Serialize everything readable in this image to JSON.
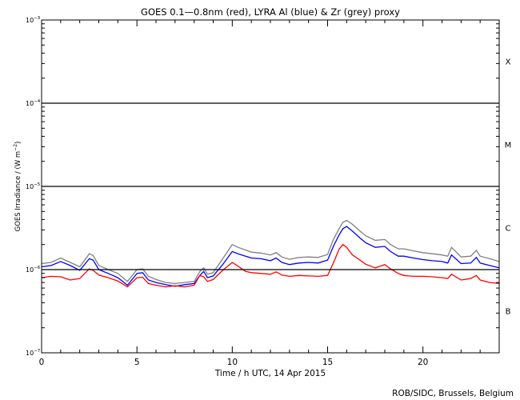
{
  "chart_data": {
    "type": "line",
    "title": "GOES 0.1—0.8nm (red), LYRA Al (blue) & Zr (grey) proxy",
    "xlabel": "Time / h UTC, 14 Apr 2015",
    "ylabel_main": "GOES Irradiance / (W m",
    "ylabel_exp": "−2",
    "ylabel_close": ")",
    "credit": "ROB/SIDC, Brussels, Belgium",
    "x_range": [
      0,
      24
    ],
    "y_range": [
      1e-07,
      0.001
    ],
    "y_scale": "log",
    "x_ticks": [
      "0",
      "5",
      "10",
      "15",
      "20"
    ],
    "x_tick_values": [
      0,
      5,
      10,
      15,
      20
    ],
    "y_ticks": [
      {
        "base": "10",
        "exp": "−3",
        "value": 0.001
      },
      {
        "base": "10",
        "exp": "−4",
        "value": 0.0001
      },
      {
        "base": "10",
        "exp": "−5",
        "value": 1e-05
      },
      {
        "base": "10",
        "exp": "−6",
        "value": 1e-06
      },
      {
        "base": "10",
        "exp": "−7",
        "value": 1e-07
      }
    ],
    "flare_levels": [
      0.0001,
      1e-05,
      1e-06
    ],
    "flare_classes": [
      {
        "label": "X",
        "value": 0.00032
      },
      {
        "label": "M",
        "value": 3.2e-05
      },
      {
        "label": "C",
        "value": 3.2e-06
      },
      {
        "label": "B",
        "value": 3.2e-07
      }
    ],
    "series": [
      {
        "color": "#ff0000",
        "x": [
          0,
          0.5,
          1,
          1.5,
          2,
          2.5,
          2.7,
          3,
          3.5,
          4,
          4.5,
          5,
          5.3,
          5.6,
          6,
          6.5,
          7,
          7.5,
          8,
          8.3,
          8.5,
          8.7,
          9,
          9.5,
          10,
          10.3,
          10.7,
          11,
          11.5,
          12,
          12.3,
          12.6,
          13,
          13.5,
          14,
          14.5,
          15,
          15.3,
          15.6,
          15.8,
          16,
          16.3,
          16.7,
          17,
          17.5,
          18,
          18.3,
          18.7,
          19,
          19.5,
          20,
          20.5,
          21,
          21.3,
          21.5,
          21.8,
          22,
          22.5,
          22.8,
          23,
          23.5,
          24
        ],
        "values": [
          8e-07,
          8.3e-07,
          8.2e-07,
          7.5e-07,
          7.8e-07,
          1.02e-06,
          9.8e-07,
          8.6e-07,
          8e-07,
          7.3e-07,
          6.2e-07,
          8e-07,
          8.1e-07,
          6.8e-07,
          6.5e-07,
          6.2e-07,
          6.4e-07,
          6.2e-07,
          6.5e-07,
          8.5e-07,
          8.2e-07,
          7.2e-07,
          7.6e-07,
          9.8e-07,
          1.22e-06,
          1.1e-06,
          9.5e-07,
          9.2e-07,
          9e-07,
          8.8e-07,
          9.4e-07,
          8.6e-07,
          8.3e-07,
          8.5e-07,
          8.4e-07,
          8.3e-07,
          8.5e-07,
          1.2e-06,
          1.75e-06,
          2e-06,
          1.85e-06,
          1.5e-06,
          1.3e-06,
          1.16e-06,
          1.05e-06,
          1.15e-06,
          1.02e-06,
          9e-07,
          8.5e-07,
          8.3e-07,
          8.3e-07,
          8.2e-07,
          8e-07,
          7.8e-07,
          8.8e-07,
          8e-07,
          7.5e-07,
          7.8e-07,
          8.5e-07,
          7.5e-07,
          7e-07,
          6.8e-07
        ]
      },
      {
        "color": "#0000ff",
        "x": [
          0,
          0.5,
          1,
          1.5,
          2,
          2.5,
          2.7,
          3,
          3.5,
          4,
          4.5,
          5,
          5.3,
          5.6,
          6,
          6.5,
          7,
          7.5,
          8,
          8.3,
          8.5,
          8.7,
          9,
          9.5,
          10,
          10.3,
          10.7,
          11,
          11.5,
          12,
          12.3,
          12.6,
          13,
          13.5,
          14,
          14.5,
          15,
          15.3,
          15.6,
          15.8,
          16,
          16.3,
          16.7,
          17,
          17.5,
          18,
          18.3,
          18.7,
          19,
          19.5,
          20,
          20.5,
          21,
          21.3,
          21.5,
          21.8,
          22,
          22.5,
          22.8,
          23,
          23.5,
          24
        ],
        "values": [
          1.08e-06,
          1.12e-06,
          1.25e-06,
          1.12e-06,
          9.8e-07,
          1.35e-06,
          1.3e-06,
          1e-06,
          9e-07,
          8e-07,
          6.5e-07,
          9e-07,
          9.2e-07,
          7.5e-07,
          7e-07,
          6.6e-07,
          6.3e-07,
          6.6e-07,
          6.8e-07,
          8.5e-07,
          9.5e-07,
          8e-07,
          8.4e-07,
          1.15e-06,
          1.65e-06,
          1.55e-06,
          1.45e-06,
          1.38e-06,
          1.35e-06,
          1.28e-06,
          1.38e-06,
          1.22e-06,
          1.15e-06,
          1.2e-06,
          1.22e-06,
          1.2e-06,
          1.3e-06,
          1.9e-06,
          2.6e-06,
          3.1e-06,
          3.3e-06,
          2.9e-06,
          2.4e-06,
          2.1e-06,
          1.85e-06,
          1.9e-06,
          1.65e-06,
          1.45e-06,
          1.45e-06,
          1.38e-06,
          1.32e-06,
          1.28e-06,
          1.25e-06,
          1.2e-06,
          1.5e-06,
          1.3e-06,
          1.18e-06,
          1.2e-06,
          1.4e-06,
          1.2e-06,
          1.12e-06,
          1.05e-06
        ]
      },
      {
        "color": "#808080",
        "x": [
          0,
          0.5,
          1,
          1.5,
          2,
          2.5,
          2.7,
          3,
          3.5,
          4,
          4.5,
          5,
          5.3,
          5.6,
          6,
          6.5,
          7,
          7.5,
          8,
          8.3,
          8.5,
          8.7,
          9,
          9.5,
          10,
          10.3,
          10.7,
          11,
          11.5,
          12,
          12.3,
          12.6,
          13,
          13.5,
          14,
          14.5,
          15,
          15.3,
          15.6,
          15.8,
          16,
          16.3,
          16.7,
          17,
          17.5,
          18,
          18.3,
          18.7,
          19,
          19.5,
          20,
          20.5,
          21,
          21.3,
          21.5,
          21.8,
          22,
          22.5,
          22.8,
          23,
          23.5,
          24
        ],
        "values": [
          1.18e-06,
          1.22e-06,
          1.38e-06,
          1.22e-06,
          1.08e-06,
          1.55e-06,
          1.48e-06,
          1.12e-06,
          1e-06,
          9e-07,
          7.2e-07,
          1e-06,
          1.02e-06,
          8.3e-07,
          7.6e-07,
          7e-07,
          6.8e-07,
          7e-07,
          7.2e-07,
          9.5e-07,
          1.05e-06,
          8.8e-07,
          9.2e-07,
          1.35e-06,
          2e-06,
          1.85e-06,
          1.72e-06,
          1.62e-06,
          1.58e-06,
          1.5e-06,
          1.6e-06,
          1.42e-06,
          1.33e-06,
          1.4e-06,
          1.42e-06,
          1.4e-06,
          1.52e-06,
          2.3e-06,
          3.1e-06,
          3.7e-06,
          3.9e-06,
          3.5e-06,
          2.9e-06,
          2.55e-06,
          2.25e-06,
          2.3e-06,
          2e-06,
          1.78e-06,
          1.78e-06,
          1.68e-06,
          1.6e-06,
          1.55e-06,
          1.5e-06,
          1.45e-06,
          1.85e-06,
          1.58e-06,
          1.42e-06,
          1.45e-06,
          1.7e-06,
          1.45e-06,
          1.35e-06,
          1.25e-06
        ]
      }
    ],
    "grid": false,
    "legend": "none"
  }
}
